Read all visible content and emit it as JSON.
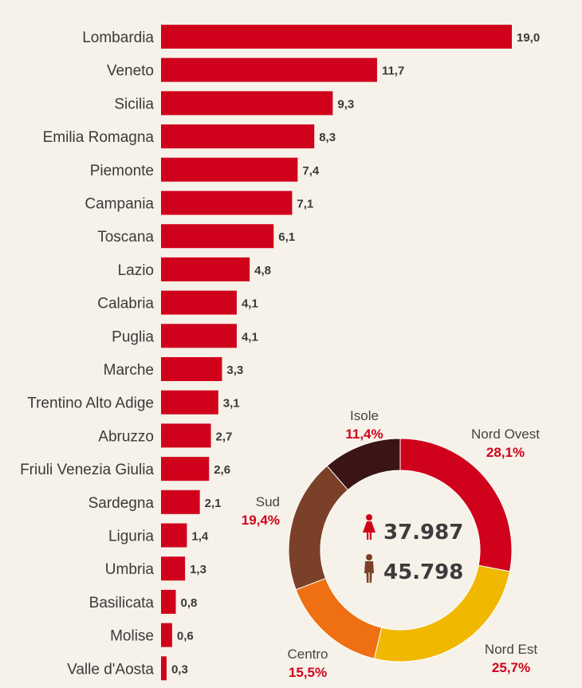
{
  "chart_data": [
    {
      "type": "bar",
      "orientation": "horizontal",
      "categories": [
        "Lombardia",
        "Veneto",
        "Sicilia",
        "Emilia Romagna",
        "Piemonte",
        "Campania",
        "Toscana",
        "Lazio",
        "Calabria",
        "Puglia",
        "Marche",
        "Trentino Alto Adige",
        "Abruzzo",
        "Friuli Venezia Giulia",
        "Sardegna",
        "Liguria",
        "Umbria",
        "Basilicata",
        "Molise",
        "Valle d'Aosta"
      ],
      "values": [
        19.0,
        11.7,
        9.3,
        8.3,
        7.4,
        7.1,
        6.1,
        4.8,
        4.1,
        4.1,
        3.3,
        3.1,
        2.7,
        2.6,
        2.1,
        1.4,
        1.3,
        0.8,
        0.6,
        0.3
      ],
      "value_labels": [
        "19,0",
        "11,7",
        "9,3",
        "8,3",
        "7,4",
        "7,1",
        "6,1",
        "4,8",
        "4,1",
        "4,1",
        "3,3",
        "3,1",
        "2,7",
        "2,6",
        "2,1",
        "1,4",
        "1,3",
        "0,8",
        "0,6",
        "0,3"
      ],
      "bar_color": "#d0021b",
      "xlim": [
        0,
        19.0
      ]
    },
    {
      "type": "pie",
      "style": "donut",
      "slices": [
        {
          "label": "Nord Ovest",
          "value": 28.1,
          "value_label": "28,1%",
          "color": "#d0021b"
        },
        {
          "label": "Nord Est",
          "value": 25.7,
          "value_label": "25,7%",
          "color": "#f0b800"
        },
        {
          "label": "Centro",
          "value": 15.5,
          "value_label": "15,5%",
          "color": "#ee7012"
        },
        {
          "label": "Sud",
          "value": 19.4,
          "value_label": "19,4%",
          "color": "#7b4028"
        },
        {
          "label": "Isole",
          "value": 11.4,
          "value_label": "11,4%",
          "color": "#3b1515"
        }
      ],
      "pct_color": "#d0021b",
      "center": {
        "female_value": "37.987",
        "male_value": "45.798",
        "female_icon": "woman-icon",
        "male_icon": "man-icon",
        "female_color": "#d0021b",
        "male_color": "#7b4028"
      }
    }
  ]
}
